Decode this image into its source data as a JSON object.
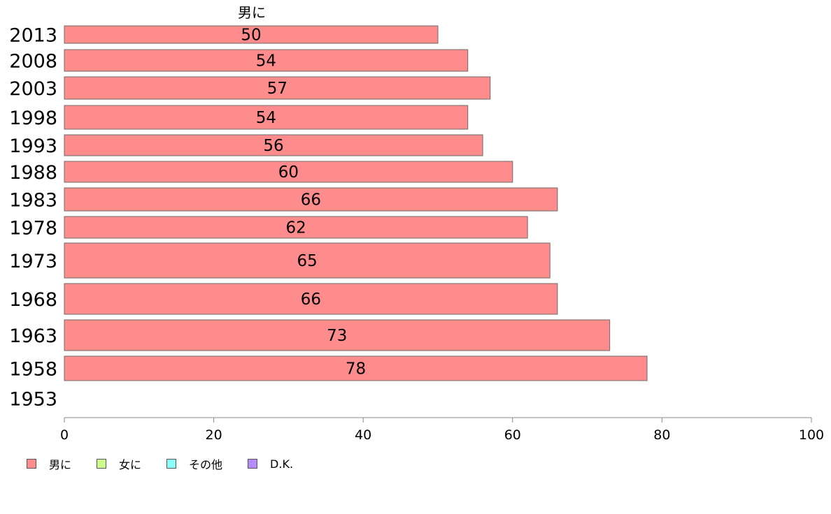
{
  "chart_data": {
    "type": "bar",
    "orientation": "horizontal",
    "series_title": "男に",
    "categories": [
      "2013",
      "2008",
      "2003",
      "1998",
      "1993",
      "1988",
      "1983",
      "1978",
      "1973",
      "1968",
      "1963",
      "1958",
      "1953"
    ],
    "series": [
      {
        "name": "男に",
        "color": "#ff8c8c",
        "values": [
          50,
          54,
          57,
          54,
          56,
          60,
          66,
          62,
          65,
          66,
          73,
          78,
          null
        ],
        "labels": [
          "50",
          "54",
          "57",
          "54",
          "56",
          "60",
          "66",
          "62",
          "65",
          "66",
          "73",
          "78",
          ""
        ]
      }
    ],
    "xlim": [
      0,
      100
    ],
    "xticks": [
      0,
      20,
      40,
      60,
      80,
      100
    ],
    "grid": false,
    "legend_position": "bottom-left"
  },
  "legend": [
    {
      "label": "男に",
      "color": "#ff8c8c"
    },
    {
      "label": "女に",
      "color": "#ccff8c"
    },
    {
      "label": "その他",
      "color": "#8cffff"
    },
    {
      "label": "D.K.",
      "color": "#b48cff"
    }
  ]
}
